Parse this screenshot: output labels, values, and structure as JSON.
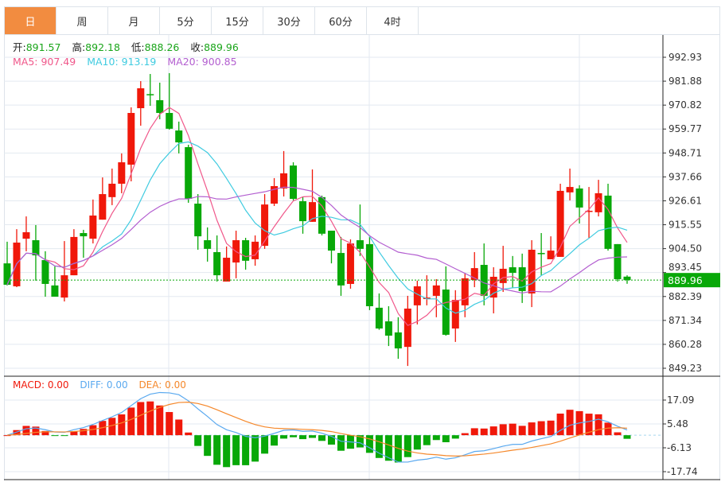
{
  "tabs": [
    {
      "label": "日",
      "active": true
    },
    {
      "label": "周",
      "active": false
    },
    {
      "label": "月",
      "active": false
    },
    {
      "label": "5分",
      "active": false
    },
    {
      "label": "15分",
      "active": false
    },
    {
      "label": "30分",
      "active": false
    },
    {
      "label": "60分",
      "active": false
    },
    {
      "label": "4时",
      "active": false
    }
  ],
  "ohlc": {
    "open_label": "开:",
    "open": "891.57",
    "high_label": "高:",
    "high": "892.18",
    "low_label": "低:",
    "low": "888.26",
    "close_label": "收:",
    "close": "889.96"
  },
  "ma": {
    "ma5_label": "MA5: 907.49",
    "ma10_label": "MA10: 913.19",
    "ma20_label": "MA20: 900.85"
  },
  "macd_legend": {
    "macd_label": "MACD: 0.00",
    "diff_label": "DIFF: 0.00",
    "dea_label": "DEA: 0.00"
  },
  "current_price": "889.96",
  "colors": {
    "up": "#f0180a",
    "down": "#08a808",
    "ma5": "#f0578a",
    "ma10": "#3fcbe0",
    "ma20": "#b35ed0",
    "diff": "#5aa9ef",
    "dea": "#f5882b",
    "active_tab": "#f28c40"
  },
  "chart_data": {
    "type": "candlestick",
    "price_axis_ticks": [
      "992.93",
      "981.88",
      "970.82",
      "959.77",
      "948.71",
      "937.66",
      "926.61",
      "915.55",
      "904.50",
      "893.45",
      "882.39",
      "871.34",
      "860.28",
      "849.23"
    ],
    "price_axis_range": [
      849.23,
      992.93
    ],
    "macd_axis_ticks": [
      "17.09",
      "5.48",
      "-6.13",
      "-17.74"
    ],
    "macd_axis_range": [
      -17.74,
      17.09
    ],
    "candles_ohlc": [
      [
        897.7,
        907.7,
        887.5,
        887.8
      ],
      [
        887.1,
        913.5,
        886.7,
        907.3
      ],
      [
        909.1,
        919.4,
        903.3,
        912.1
      ],
      [
        908.4,
        915.4,
        889.7,
        901.4
      ],
      [
        899.2,
        903.3,
        882.3,
        888.2
      ],
      [
        887.5,
        896.3,
        882.3,
        882.3
      ],
      [
        881.9,
        908.0,
        880.1,
        892.2
      ],
      [
        892.2,
        913.5,
        892.2,
        909.9
      ],
      [
        911.7,
        913.2,
        900.3,
        910.2
      ],
      [
        909.1,
        927.2,
        906.9,
        919.8
      ],
      [
        917.9,
        937.4,
        917.9,
        929.7
      ],
      [
        928.3,
        941.5,
        924.6,
        934.5
      ],
      [
        934.5,
        948.5,
        930.1,
        944.4
      ],
      [
        943.3,
        969.8,
        935.6,
        967.2
      ],
      [
        969.4,
        981.9,
        961.3,
        978.6
      ],
      [
        975.9,
        985.2,
        970.5,
        975.7
      ],
      [
        973.1,
        981.2,
        964.3,
        967.2
      ],
      [
        967.2,
        985.6,
        959.5,
        959.9
      ],
      [
        959.1,
        963.2,
        948.5,
        953.6
      ],
      [
        951.4,
        952.5,
        925.7,
        927.5
      ],
      [
        925.3,
        929.7,
        904.0,
        910.2
      ],
      [
        908.4,
        914.3,
        898.5,
        904.4
      ],
      [
        902.9,
        910.6,
        889.3,
        892.2
      ],
      [
        889.3,
        905.5,
        889.3,
        900.3
      ],
      [
        898.1,
        912.8,
        890.8,
        908.4
      ],
      [
        908.4,
        909.5,
        894.8,
        898.9
      ],
      [
        899.6,
        910.6,
        896.6,
        907.7
      ],
      [
        905.8,
        929.7,
        904.4,
        924.9
      ],
      [
        925.3,
        937.1,
        924.2,
        933.4
      ],
      [
        932.3,
        949.6,
        928.6,
        939.3
      ],
      [
        942.9,
        944.4,
        926.8,
        927.5
      ],
      [
        926.4,
        928.3,
        911.4,
        917.2
      ],
      [
        916.9,
        941.1,
        916.9,
        926.0
      ],
      [
        928.3,
        929.0,
        910.6,
        911.4
      ],
      [
        912.8,
        912.8,
        897.7,
        903.6
      ],
      [
        902.5,
        909.9,
        882.7,
        887.5
      ],
      [
        888.2,
        908.8,
        886.0,
        906.9
      ],
      [
        908.4,
        924.9,
        901.1,
        904.4
      ],
      [
        906.6,
        909.9,
        876.1,
        877.9
      ],
      [
        877.2,
        883.8,
        867.0,
        867.6
      ],
      [
        870.9,
        877.9,
        859.5,
        864.3
      ],
      [
        865.8,
        872.8,
        853.6,
        858.4
      ],
      [
        859.1,
        882.7,
        850.3,
        876.8
      ],
      [
        878.3,
        889.7,
        869.5,
        887.1
      ],
      [
        881.2,
        892.2,
        878.3,
        881.9
      ],
      [
        882.7,
        890.4,
        872.8,
        887.5
      ],
      [
        885.6,
        896.3,
        864.3,
        864.7
      ],
      [
        867.6,
        885.3,
        861.4,
        880.8
      ],
      [
        878.3,
        893.0,
        872.8,
        890.8
      ],
      [
        890.0,
        902.9,
        886.7,
        895.5
      ],
      [
        897.0,
        906.9,
        878.3,
        882.7
      ],
      [
        881.9,
        895.9,
        874.6,
        891.5
      ],
      [
        888.6,
        905.8,
        884.5,
        895.2
      ],
      [
        895.9,
        901.1,
        886.3,
        893.3
      ],
      [
        895.9,
        902.2,
        879.4,
        884.9
      ],
      [
        883.8,
        908.4,
        877.5,
        904.0
      ],
      [
        902.5,
        911.7,
        892.2,
        902.2
      ],
      [
        899.6,
        910.2,
        899.6,
        903.6
      ],
      [
        900.7,
        934.5,
        900.7,
        931.2
      ],
      [
        930.5,
        941.5,
        926.8,
        933.0
      ],
      [
        932.3,
        933.8,
        916.1,
        923.5
      ],
      [
        921.6,
        933.0,
        909.5,
        922.0
      ],
      [
        921.3,
        936.3,
        919.4,
        930.1
      ],
      [
        929.0,
        934.5,
        903.6,
        904.4
      ],
      [
        906.6,
        906.6,
        889.3,
        890.4
      ],
      [
        891.57,
        892.18,
        888.26,
        889.96
      ]
    ],
    "ma_periods": [
      5,
      10,
      20
    ],
    "macd_params": [
      12,
      26,
      9
    ]
  }
}
